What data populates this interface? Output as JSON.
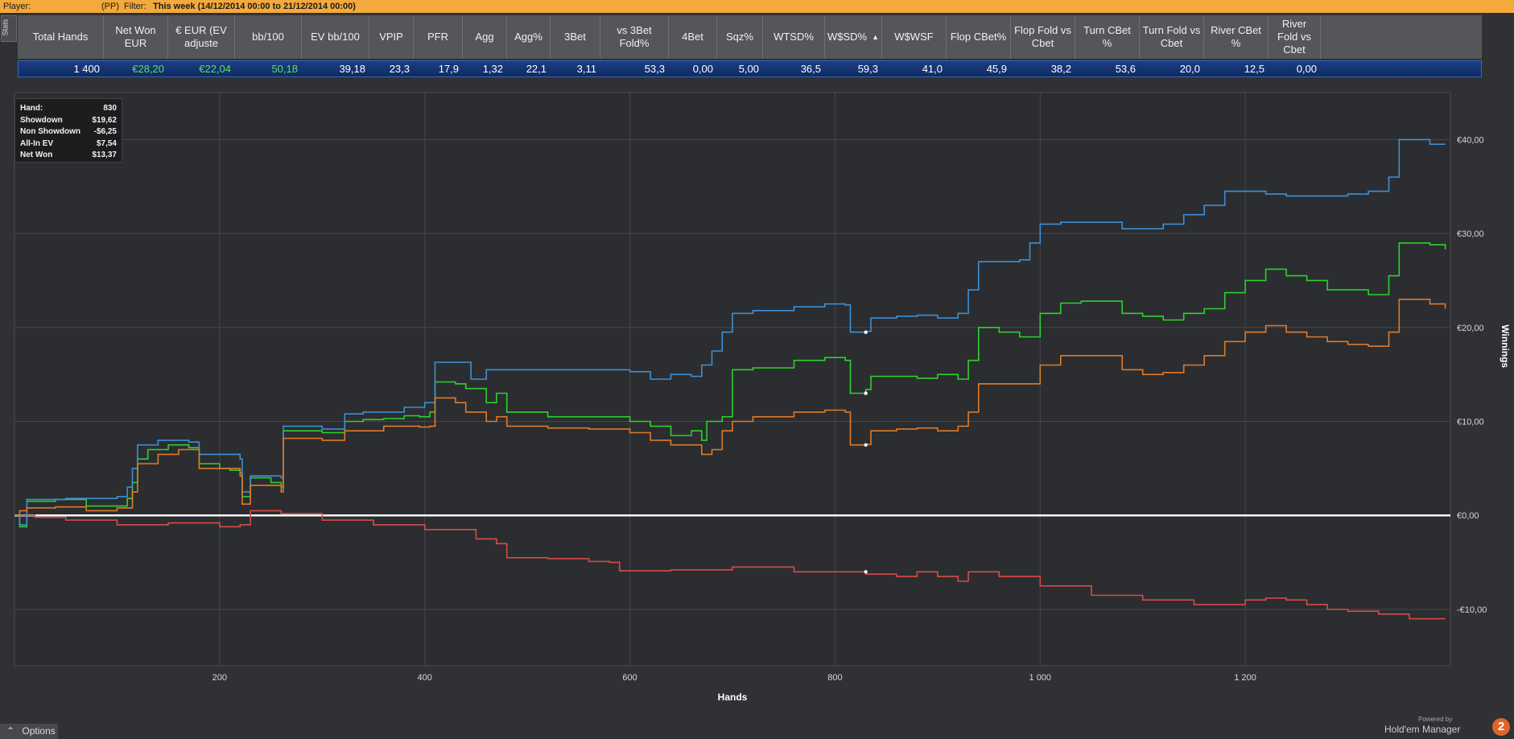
{
  "topbar": {
    "player_label": "Player:",
    "site": "(PP)",
    "filter_label": "Filter:",
    "filter_value": "This week (14/12/2014 00:00 to 21/12/2014 00:00)"
  },
  "stats_tab": "Stats",
  "stats": {
    "headers": [
      "Total Hands",
      "Net Won EUR",
      "€ EUR (EV adjuste",
      "bb/100",
      "EV bb/100",
      "VPIP",
      "PFR",
      "Agg",
      "Agg%",
      "3Bet",
      "vs 3Bet Fold%",
      "4Bet",
      "Sqz%",
      "WTSD%",
      "W$SD%",
      "W$WSF",
      "Flop CBet%",
      "Flop Fold vs Cbet",
      "Turn CBet %",
      "Turn Fold vs Cbet",
      "River CBet %",
      "River Fold vs Cbet"
    ],
    "values": [
      "1 400",
      "€28,20",
      "€22,04",
      "50,18",
      "39,18",
      "23,3",
      "17,9",
      "1,32",
      "22,1",
      "3,11",
      "53,3",
      "0,00",
      "5,00",
      "36,5",
      "59,3",
      "41,0",
      "45,9",
      "38,2",
      "53,6",
      "20,0",
      "12,5",
      "0,00"
    ],
    "sort_indicator": "▲"
  },
  "info_box": {
    "rows": [
      {
        "label": "Hand:",
        "value": "830"
      },
      {
        "label": "Showdown",
        "value": "$19,62"
      },
      {
        "label": "Non Showdown",
        "value": "-$6,25"
      },
      {
        "label": "All-In EV",
        "value": "$7,54"
      },
      {
        "label": "Net Won",
        "value": "$13,37"
      }
    ]
  },
  "chart_data": {
    "type": "line",
    "xlabel": "Hands",
    "ylabel": "Winnings",
    "xlim": [
      0,
      1400
    ],
    "ylim": [
      -16,
      45
    ],
    "x_ticks": [
      200,
      400,
      600,
      800,
      1000,
      1200
    ],
    "x_tick_labels": [
      "200",
      "400",
      "600",
      "800",
      "1 000",
      "1 200"
    ],
    "y_ticks": [
      -10,
      0,
      10,
      20,
      30,
      40
    ],
    "y_tick_labels": [
      "-€10,00",
      "€0,00",
      "€10,00",
      "€20,00",
      "€30,00",
      "€40,00"
    ],
    "grid": true,
    "legend_position": "bottom",
    "marker_x": 830,
    "series": [
      {
        "name": "Net Won",
        "color": "#2ed12e",
        "points": [
          [
            0,
            0
          ],
          [
            5,
            -1.2
          ],
          [
            12,
            1.5
          ],
          [
            40,
            1.7
          ],
          [
            70,
            1.0
          ],
          [
            110,
            1.8
          ],
          [
            115,
            3.5
          ],
          [
            120,
            6
          ],
          [
            130,
            7
          ],
          [
            150,
            7.5
          ],
          [
            170,
            7.2
          ],
          [
            180,
            5.5
          ],
          [
            200,
            5
          ],
          [
            210,
            4.8
          ],
          [
            220,
            4.5
          ],
          [
            222,
            2
          ],
          [
            230,
            4
          ],
          [
            250,
            3.5
          ],
          [
            260,
            3
          ],
          [
            262,
            9
          ],
          [
            280,
            9
          ],
          [
            300,
            8.8
          ],
          [
            320,
            8.8
          ],
          [
            322,
            10
          ],
          [
            340,
            10.2
          ],
          [
            360,
            10.3
          ],
          [
            380,
            10.6
          ],
          [
            395,
            10.5
          ],
          [
            405,
            11
          ],
          [
            410,
            14.2
          ],
          [
            430,
            14
          ],
          [
            440,
            13.5
          ],
          [
            460,
            12
          ],
          [
            470,
            13
          ],
          [
            480,
            11
          ],
          [
            520,
            10.5
          ],
          [
            560,
            10.5
          ],
          [
            600,
            10
          ],
          [
            620,
            9.5
          ],
          [
            640,
            8.5
          ],
          [
            660,
            9
          ],
          [
            670,
            8
          ],
          [
            675,
            10
          ],
          [
            690,
            10.5
          ],
          [
            700,
            15.5
          ],
          [
            720,
            15.7
          ],
          [
            760,
            16.5
          ],
          [
            790,
            16.8
          ],
          [
            810,
            16.5
          ],
          [
            815,
            13
          ],
          [
            830,
            13.4
          ],
          [
            835,
            14.8
          ],
          [
            860,
            14.8
          ],
          [
            880,
            14.6
          ],
          [
            900,
            15
          ],
          [
            920,
            14.5
          ],
          [
            930,
            16.5
          ],
          [
            940,
            20
          ],
          [
            960,
            19.5
          ],
          [
            980,
            19
          ],
          [
            990,
            19
          ],
          [
            1000,
            21.5
          ],
          [
            1020,
            22.6
          ],
          [
            1040,
            22.8
          ],
          [
            1080,
            21.5
          ],
          [
            1100,
            21.2
          ],
          [
            1120,
            20.8
          ],
          [
            1140,
            21.5
          ],
          [
            1160,
            22
          ],
          [
            1180,
            23.7
          ],
          [
            1200,
            25
          ],
          [
            1220,
            26.2
          ],
          [
            1240,
            25.5
          ],
          [
            1260,
            25
          ],
          [
            1280,
            24
          ],
          [
            1300,
            24
          ],
          [
            1320,
            23.5
          ],
          [
            1340,
            25.5
          ],
          [
            1350,
            29
          ],
          [
            1380,
            28.8
          ],
          [
            1395,
            28.3
          ]
        ]
      },
      {
        "name": "Non Showdown",
        "color": "#d94a4a",
        "points": [
          [
            0,
            0
          ],
          [
            20,
            -0.2
          ],
          [
            50,
            -0.5
          ],
          [
            100,
            -1
          ],
          [
            150,
            -0.8
          ],
          [
            200,
            -1.2
          ],
          [
            220,
            -1
          ],
          [
            230,
            0.5
          ],
          [
            260,
            0.2
          ],
          [
            300,
            -0.5
          ],
          [
            350,
            -1
          ],
          [
            400,
            -1.5
          ],
          [
            450,
            -2.5
          ],
          [
            470,
            -3
          ],
          [
            480,
            -4.5
          ],
          [
            520,
            -4.6
          ],
          [
            560,
            -4.9
          ],
          [
            580,
            -5
          ],
          [
            590,
            -5.9
          ],
          [
            640,
            -5.8
          ],
          [
            700,
            -5.5
          ],
          [
            760,
            -6
          ],
          [
            800,
            -6
          ],
          [
            830,
            -6.25
          ],
          [
            860,
            -6.5
          ],
          [
            880,
            -6
          ],
          [
            900,
            -6.5
          ],
          [
            920,
            -7
          ],
          [
            930,
            -6
          ],
          [
            960,
            -6.5
          ],
          [
            1000,
            -7.5
          ],
          [
            1050,
            -8.5
          ],
          [
            1100,
            -9
          ],
          [
            1150,
            -9.5
          ],
          [
            1200,
            -9
          ],
          [
            1220,
            -8.8
          ],
          [
            1240,
            -9
          ],
          [
            1260,
            -9.5
          ],
          [
            1280,
            -10
          ],
          [
            1300,
            -10.2
          ],
          [
            1330,
            -10.5
          ],
          [
            1360,
            -11
          ],
          [
            1395,
            -11
          ]
        ]
      },
      {
        "name": "Showdown",
        "color": "#3d8fd6",
        "points": [
          [
            0,
            0
          ],
          [
            5,
            -1
          ],
          [
            12,
            1.7
          ],
          [
            50,
            1.8
          ],
          [
            100,
            2
          ],
          [
            110,
            3
          ],
          [
            115,
            5
          ],
          [
            120,
            7.5
          ],
          [
            140,
            8
          ],
          [
            170,
            7.8
          ],
          [
            180,
            6.5
          ],
          [
            220,
            6
          ],
          [
            222,
            2.5
          ],
          [
            230,
            4.2
          ],
          [
            260,
            4
          ],
          [
            262,
            9.5
          ],
          [
            300,
            9.2
          ],
          [
            320,
            9.2
          ],
          [
            322,
            10.8
          ],
          [
            340,
            11
          ],
          [
            380,
            11.5
          ],
          [
            395,
            11.5
          ],
          [
            400,
            12
          ],
          [
            410,
            16.3
          ],
          [
            440,
            16.3
          ],
          [
            445,
            14.5
          ],
          [
            460,
            15.5
          ],
          [
            520,
            15.5
          ],
          [
            580,
            15.5
          ],
          [
            600,
            15.3
          ],
          [
            620,
            14.5
          ],
          [
            640,
            15
          ],
          [
            660,
            14.8
          ],
          [
            670,
            16
          ],
          [
            680,
            17.5
          ],
          [
            690,
            19.5
          ],
          [
            700,
            21.5
          ],
          [
            720,
            21.8
          ],
          [
            760,
            22.2
          ],
          [
            790,
            22.5
          ],
          [
            810,
            22.4
          ],
          [
            815,
            19.5
          ],
          [
            830,
            19.6
          ],
          [
            835,
            21
          ],
          [
            860,
            21.2
          ],
          [
            880,
            21.3
          ],
          [
            900,
            21
          ],
          [
            920,
            21.5
          ],
          [
            930,
            24
          ],
          [
            940,
            27
          ],
          [
            980,
            27.2
          ],
          [
            990,
            29
          ],
          [
            1000,
            31
          ],
          [
            1020,
            31.2
          ],
          [
            1040,
            31.2
          ],
          [
            1080,
            30.5
          ],
          [
            1100,
            30.5
          ],
          [
            1120,
            31
          ],
          [
            1140,
            32
          ],
          [
            1160,
            33
          ],
          [
            1180,
            34.5
          ],
          [
            1200,
            34.5
          ],
          [
            1220,
            34.2
          ],
          [
            1240,
            34
          ],
          [
            1280,
            34
          ],
          [
            1300,
            34.2
          ],
          [
            1320,
            34.5
          ],
          [
            1340,
            36
          ],
          [
            1350,
            40
          ],
          [
            1380,
            39.5
          ],
          [
            1395,
            39.5
          ]
        ]
      },
      {
        "name": "All-In EV",
        "color": "#e07a28",
        "points": [
          [
            0,
            0
          ],
          [
            5,
            0.5
          ],
          [
            12,
            0.8
          ],
          [
            40,
            0.9
          ],
          [
            70,
            0.5
          ],
          [
            100,
            0.8
          ],
          [
            115,
            2.5
          ],
          [
            120,
            5.5
          ],
          [
            140,
            6.5
          ],
          [
            160,
            7
          ],
          [
            180,
            5
          ],
          [
            220,
            4.2
          ],
          [
            222,
            1.2
          ],
          [
            230,
            3.2
          ],
          [
            260,
            2.5
          ],
          [
            262,
            8.2
          ],
          [
            300,
            8
          ],
          [
            320,
            8
          ],
          [
            322,
            9
          ],
          [
            340,
            9
          ],
          [
            360,
            9.5
          ],
          [
            380,
            9.5
          ],
          [
            395,
            9.4
          ],
          [
            405,
            9.5
          ],
          [
            410,
            12.5
          ],
          [
            430,
            12
          ],
          [
            440,
            11
          ],
          [
            460,
            10
          ],
          [
            470,
            10.5
          ],
          [
            480,
            9.5
          ],
          [
            520,
            9.3
          ],
          [
            560,
            9.2
          ],
          [
            600,
            8.8
          ],
          [
            620,
            8
          ],
          [
            640,
            7.5
          ],
          [
            660,
            7.5
          ],
          [
            670,
            6.5
          ],
          [
            680,
            7
          ],
          [
            690,
            9
          ],
          [
            700,
            10
          ],
          [
            720,
            10.5
          ],
          [
            760,
            11
          ],
          [
            790,
            11.2
          ],
          [
            810,
            11
          ],
          [
            815,
            7.5
          ],
          [
            830,
            7.54
          ],
          [
            835,
            9
          ],
          [
            860,
            9.2
          ],
          [
            880,
            9.3
          ],
          [
            900,
            9
          ],
          [
            920,
            9.5
          ],
          [
            930,
            11
          ],
          [
            940,
            14
          ],
          [
            980,
            14
          ],
          [
            990,
            14
          ],
          [
            1000,
            16
          ],
          [
            1020,
            17
          ],
          [
            1040,
            17
          ],
          [
            1080,
            15.5
          ],
          [
            1100,
            15
          ],
          [
            1120,
            15.2
          ],
          [
            1140,
            16
          ],
          [
            1160,
            17
          ],
          [
            1180,
            18.5
          ],
          [
            1200,
            19.5
          ],
          [
            1220,
            20.2
          ],
          [
            1240,
            19.5
          ],
          [
            1260,
            19
          ],
          [
            1280,
            18.5
          ],
          [
            1300,
            18.2
          ],
          [
            1320,
            18
          ],
          [
            1340,
            19.5
          ],
          [
            1350,
            23
          ],
          [
            1380,
            22.5
          ],
          [
            1395,
            22
          ]
        ]
      }
    ]
  },
  "options_label": "Options",
  "brand": {
    "powered": "Powered by",
    "name": "Hold'em Manager",
    "badge": "2"
  }
}
